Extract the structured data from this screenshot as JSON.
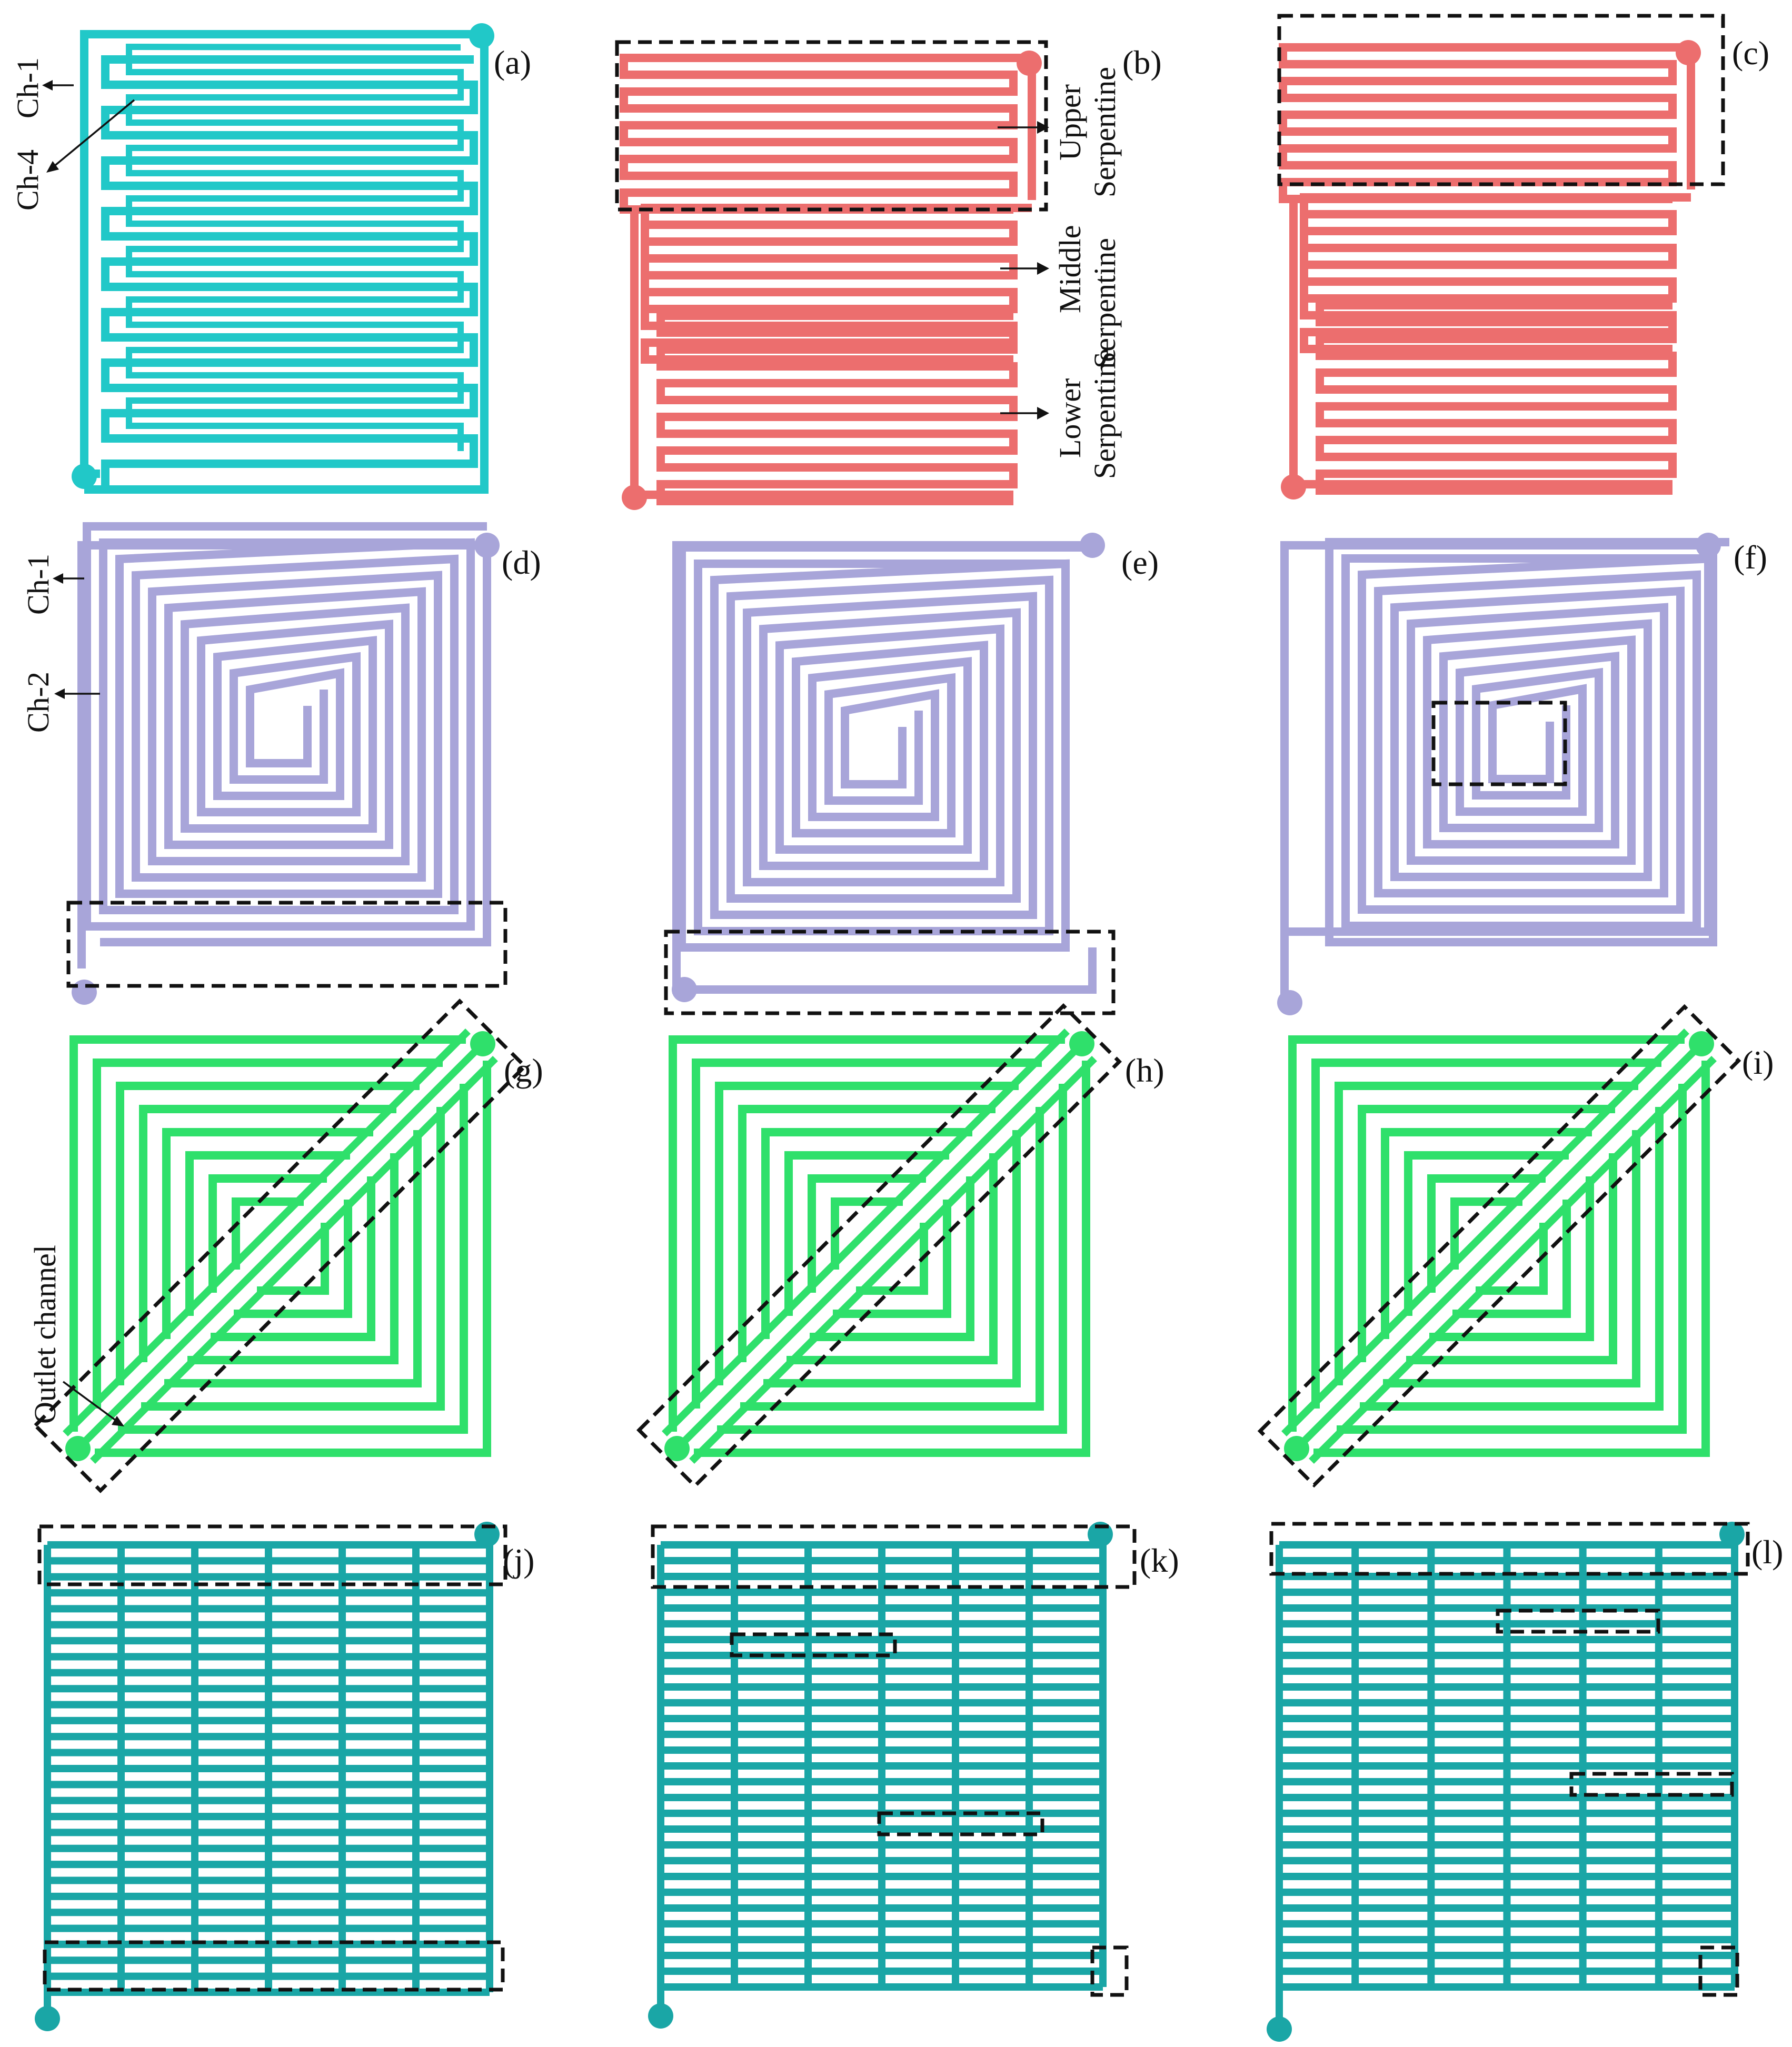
{
  "colors": {
    "cyan": "#21c8c8",
    "salmon": "#ec6e6e",
    "lavender": "#a8a5d9",
    "green": "#2fe06b",
    "teal": "#1aa6a6",
    "annotation": "#111111"
  },
  "panels": [
    {
      "id": "a",
      "label": "(a)",
      "type": "serpentine-multi",
      "color": "#21c8c8"
    },
    {
      "id": "b",
      "label": "(b)",
      "type": "serpentine-three-section",
      "color": "#ec6e6e"
    },
    {
      "id": "c",
      "label": "(c)",
      "type": "serpentine-three-section",
      "color": "#ec6e6e"
    },
    {
      "id": "d",
      "label": "(d)",
      "type": "square-spiral",
      "color": "#a8a5d9"
    },
    {
      "id": "e",
      "label": "(e)",
      "type": "square-spiral",
      "color": "#a8a5d9"
    },
    {
      "id": "f",
      "label": "(f)",
      "type": "square-spiral",
      "color": "#a8a5d9"
    },
    {
      "id": "g",
      "label": "(g)",
      "type": "diagonal-spiral",
      "color": "#2fe06b"
    },
    {
      "id": "h",
      "label": "(h)",
      "type": "diagonal-spiral",
      "color": "#2fe06b"
    },
    {
      "id": "i",
      "label": "(i)",
      "type": "diagonal-spiral",
      "color": "#2fe06b"
    },
    {
      "id": "j",
      "label": "(j)",
      "type": "parallel-grid",
      "color": "#1aa6a6"
    },
    {
      "id": "k",
      "label": "(k)",
      "type": "parallel-grid",
      "color": "#1aa6a6"
    },
    {
      "id": "l",
      "label": "(l)",
      "type": "parallel-grid",
      "color": "#1aa6a6"
    }
  ],
  "annotations": {
    "ch1_a": "Ch-1",
    "ch4_a": "Ch-4",
    "upper_1": "Upper",
    "upper_2": "Serpentine",
    "middle_1": "Middle",
    "middle_2": "Serpentine",
    "lower_1": "Lower",
    "lower_2": "Serpentine",
    "ch1_d": "Ch-1",
    "ch2_d": "Ch-2",
    "outlet": "Outlet channel"
  }
}
